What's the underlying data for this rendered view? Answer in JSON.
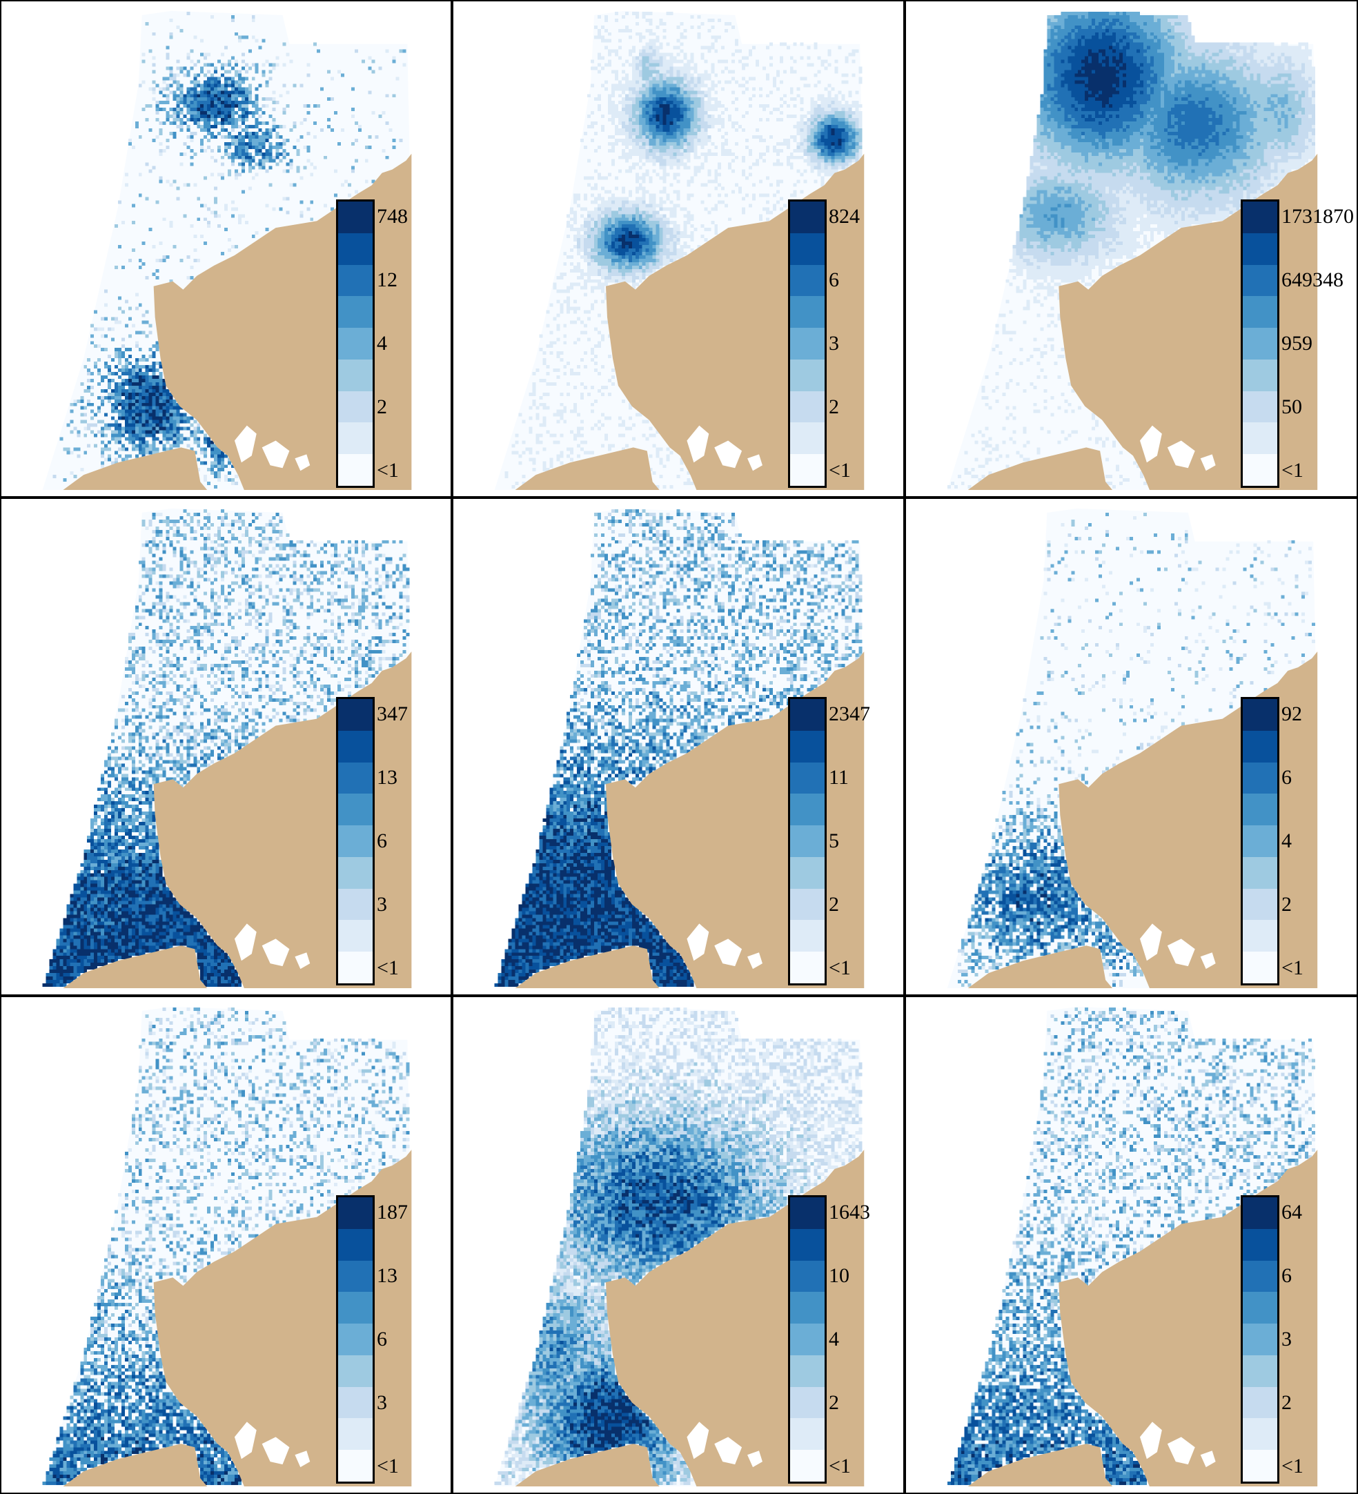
{
  "land_color": "#d2b48c",
  "palette": [
    "#f7fbff",
    "#deebf7",
    "#c6dbef",
    "#9ecae1",
    "#6baed6",
    "#4292c6",
    "#2171b5",
    "#08519c",
    "#08306b"
  ],
  "panels": [
    {
      "legend": {
        "labels": [
          "748",
          "12",
          "4",
          "2",
          "<1"
        ]
      },
      "pattern": "a"
    },
    {
      "legend": {
        "labels": [
          "824",
          "6",
          "3",
          "2",
          "<1"
        ]
      },
      "pattern": "b"
    },
    {
      "legend": {
        "labels": [
          "1731870",
          "649348",
          "959",
          "50",
          "<1"
        ]
      },
      "pattern": "c"
    },
    {
      "legend": {
        "labels": [
          "347",
          "13",
          "6",
          "3",
          "<1"
        ]
      },
      "pattern": "d"
    },
    {
      "legend": {
        "labels": [
          "2347",
          "11",
          "5",
          "2",
          "<1"
        ]
      },
      "pattern": "e"
    },
    {
      "legend": {
        "labels": [
          "92",
          "6",
          "4",
          "2",
          "<1"
        ]
      },
      "pattern": "f"
    },
    {
      "legend": {
        "labels": [
          "187",
          "13",
          "6",
          "3",
          "<1"
        ]
      },
      "pattern": "g"
    },
    {
      "legend": {
        "labels": [
          "1643",
          "10",
          "4",
          "2",
          "<1"
        ]
      },
      "pattern": "h"
    },
    {
      "legend": {
        "labels": [
          "64",
          "6",
          "3",
          "2",
          "<1"
        ]
      },
      "pattern": "i"
    }
  ]
}
